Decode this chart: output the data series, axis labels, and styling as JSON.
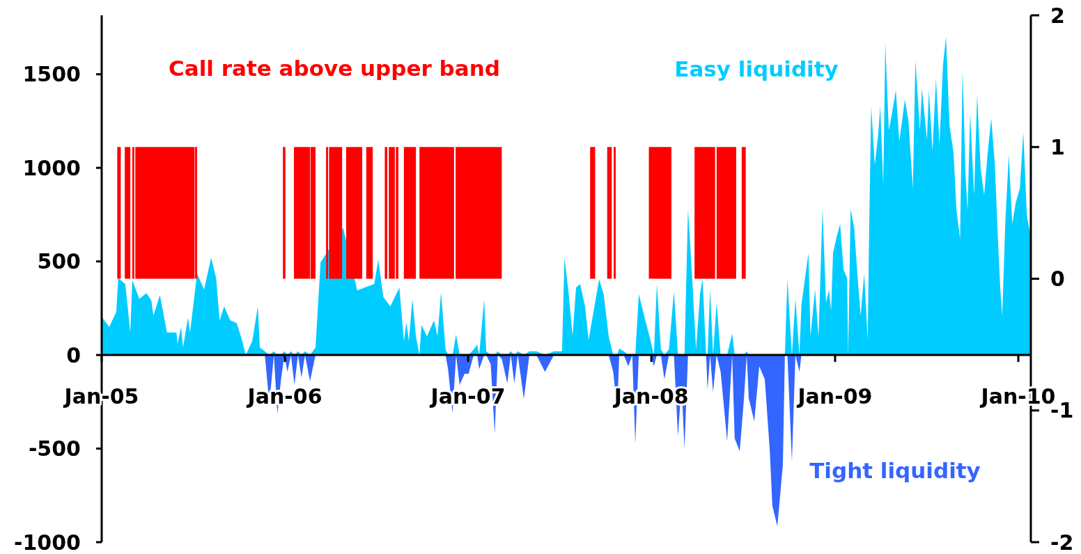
{
  "chart_data": {
    "type": "area",
    "xlim": [
      "2005-01-01",
      "2010-01-26"
    ],
    "xticks": [
      {
        "value": "2005-01-01",
        "label": "Jan-05"
      },
      {
        "value": "2006-01-01",
        "label": "Jan-06"
      },
      {
        "value": "2007-01-01",
        "label": "Jan-07"
      },
      {
        "value": "2008-01-01",
        "label": "Jan-08"
      },
      {
        "value": "2009-01-01",
        "label": "Jan-09"
      },
      {
        "value": "2010-01-01",
        "label": "Jan-10"
      }
    ],
    "ylim": [
      -1000,
      1815
    ],
    "yticks": [
      -1000,
      -500,
      0,
      500,
      1000,
      1500
    ],
    "y2lim": [
      -2,
      2
    ],
    "y2ticks": [
      -2,
      -1,
      0,
      1,
      2
    ],
    "x": [
      "2005-01-02",
      "2005-01-16",
      "2005-01-30",
      "2005-02-03",
      "2005-02-17",
      "2005-02-27",
      "2005-03-03",
      "2005-03-17",
      "2005-03-31",
      "2005-04-10",
      "2005-04-14",
      "2005-04-27",
      "2005-05-11",
      "2005-05-30",
      "2005-06-01",
      "2005-06-08",
      "2005-06-12",
      "2005-06-22",
      "2005-06-26",
      "2005-07-10",
      "2005-07-24",
      "2005-08-07",
      "2005-08-17",
      "2005-08-24",
      "2005-09-02",
      "2005-09-14",
      "2005-09-27",
      "2005-10-07",
      "2005-10-15",
      "2005-10-28",
      "2005-11-08",
      "2005-11-12",
      "2005-11-22",
      "2005-12-01",
      "2005-12-10",
      "2005-12-17",
      "2005-12-24",
      "2005-12-31",
      "2006-01-06",
      "2006-01-13",
      "2006-01-20",
      "2006-01-27",
      "2006-02-03",
      "2006-02-10",
      "2006-02-20",
      "2006-03-03",
      "2006-03-13",
      "2006-03-31",
      "2006-04-14",
      "2006-04-27",
      "2006-05-11",
      "2006-05-25",
      "2006-06-08",
      "2006-06-28",
      "2006-07-06",
      "2006-07-16",
      "2006-07-30",
      "2006-08-05",
      "2006-08-17",
      "2006-08-26",
      "2006-08-31",
      "2006-09-05",
      "2006-09-12",
      "2006-09-19",
      "2006-09-26",
      "2006-09-30",
      "2006-10-11",
      "2006-10-25",
      "2006-11-01",
      "2006-11-08",
      "2006-11-17",
      "2006-11-22",
      "2006-12-01",
      "2006-12-08",
      "2006-12-15",
      "2006-12-25",
      "2007-01-02",
      "2007-01-12",
      "2007-01-19",
      "2007-01-23",
      "2007-02-02",
      "2007-02-06",
      "2007-02-15",
      "2007-02-23",
      "2007-03-01",
      "2007-03-09",
      "2007-03-20",
      "2007-03-27",
      "2007-04-03",
      "2007-04-10",
      "2007-04-22",
      "2007-05-03",
      "2007-05-17",
      "2007-06-03",
      "2007-06-21",
      "2007-07-07",
      "2007-07-12",
      "2007-07-21",
      "2007-07-28",
      "2007-08-04",
      "2007-08-12",
      "2007-08-22",
      "2007-08-29",
      "2007-09-11",
      "2007-09-19",
      "2007-09-28",
      "2007-10-08",
      "2007-10-17",
      "2007-10-25",
      "2007-10-29",
      "2007-11-07",
      "2007-11-16",
      "2007-11-24",
      "2007-11-30",
      "2007-12-07",
      "2007-12-20",
      "2007-12-31",
      "2008-01-06",
      "2008-01-12",
      "2008-01-20",
      "2008-01-27",
      "2008-02-05",
      "2008-02-15",
      "2008-02-23",
      "2008-03-01",
      "2008-03-07",
      "2008-03-14",
      "2008-03-23",
      "2008-03-30",
      "2008-04-07",
      "2008-04-12",
      "2008-04-19",
      "2008-04-22",
      "2008-04-27",
      "2008-05-03",
      "2008-05-10",
      "2008-05-18",
      "2008-05-31",
      "2008-06-10",
      "2008-06-15",
      "2008-06-25",
      "2008-07-03",
      "2008-07-09",
      "2008-07-13",
      "2008-07-24",
      "2008-08-03",
      "2008-08-14",
      "2008-08-24",
      "2008-08-29",
      "2008-09-08",
      "2008-09-19",
      "2008-09-23",
      "2008-09-28",
      "2008-10-07",
      "2008-10-14",
      "2008-10-22",
      "2008-10-26",
      "2008-11-09",
      "2008-11-13",
      "2008-11-22",
      "2008-11-29",
      "2008-12-07",
      "2008-12-14",
      "2008-12-20",
      "2008-12-24",
      "2008-12-28",
      "2009-01-04",
      "2009-01-11",
      "2009-01-18",
      "2009-01-25",
      "2009-01-27",
      "2009-02-01",
      "2009-02-08",
      "2009-02-15",
      "2009-02-21",
      "2009-02-28",
      "2009-03-07",
      "2009-03-10",
      "2009-03-14",
      "2009-03-21",
      "2009-03-28",
      "2009-04-01",
      "2009-04-07",
      "2009-04-11",
      "2009-04-18",
      "2009-04-25",
      "2009-05-02",
      "2009-05-09",
      "2009-05-20",
      "2009-05-27",
      "2009-06-05",
      "2009-06-10",
      "2009-06-19",
      "2009-06-23",
      "2009-07-03",
      "2009-07-07",
      "2009-07-14",
      "2009-07-21",
      "2009-07-28",
      "2009-08-04",
      "2009-08-10",
      "2009-08-17",
      "2009-08-25",
      "2009-08-31",
      "2009-09-07",
      "2009-09-12",
      "2009-09-18",
      "2009-09-22",
      "2009-09-27",
      "2009-10-05",
      "2009-10-11",
      "2009-10-18",
      "2009-10-25",
      "2009-11-01",
      "2009-11-08",
      "2009-11-15",
      "2009-11-22",
      "2009-11-26",
      "2009-11-30",
      "2009-12-06",
      "2009-12-13",
      "2009-12-20",
      "2009-12-27",
      "2010-01-04",
      "2010-01-11",
      "2010-01-18",
      "2010-01-25"
    ],
    "series": [
      {
        "name": "Easy liquidity",
        "color": "#00ccff",
        "values": [
          200,
          150,
          230,
          410,
          380,
          120,
          400,
          300,
          330,
          290,
          210,
          320,
          120,
          120,
          60,
          150,
          40,
          200,
          120,
          435,
          350,
          520,
          410,
          185,
          260,
          185,
          170,
          85,
          0,
          75,
          260,
          40,
          20,
          0,
          20,
          0,
          0,
          20,
          0,
          20,
          0,
          20,
          0,
          20,
          0,
          40,
          495,
          null,
          null,
          680,
          null,
          345,
          null,
          380,
          510,
          310,
          260,
          null,
          360,
          75,
          175,
          75,
          300,
          100,
          0,
          160,
          100,
          185,
          100,
          335,
          30,
          0,
          0,
          110,
          0,
          0,
          0,
          30,
          55,
          0,
          300,
          20,
          0,
          0,
          20,
          0,
          0,
          20,
          0,
          20,
          0,
          20,
          20,
          0,
          20,
          20,
          520,
          310,
          100,
          360,
          380,
          260,
          80,
          null,
          405,
          325,
          100,
          0,
          0,
          35,
          20,
          0,
          5,
          0,
          325,
          185,
          70,
          0,
          380,
          30,
          0,
          30,
          340,
          0,
          0,
          0,
          780,
          380,
          30,
          325,
          410,
          5,
          0,
          350,
          0,
          280,
          0,
          0,
          115,
          0,
          0,
          0,
          20,
          0,
          0,
          0,
          0,
          0,
          0,
          0,
          0,
          0,
          405,
          0,
          300,
          0,
          270,
          545,
          100,
          350,
          100,
          780,
          280,
          350,
          235,
          545,
          630,
          700,
          455,
          410,
          0,
          780,
          680,
          410,
          210,
          435,
          80,
          700,
          1330,
          1015,
          1180,
          1330,
          905,
          1665,
          1200,
          1300,
          1415,
          1140,
          1365,
          1255,
          890,
          1575,
          1200,
          1425,
          1150,
          1415,
          1090,
          1475,
          1125,
          1550,
          1700,
          1225,
          1080,
          770,
          620,
          1525,
          955,
          770,
          1290,
          855,
          1390,
          995,
          855,
          1080,
          1265,
          1030,
          585,
          360,
          210,
          700,
          1070,
          700,
          815,
          890,
          1190,
          745,
          645
        ]
      },
      {
        "name": "Tight liquidity",
        "color": "#3366ff",
        "x": [
          "2005-11-22",
          "2005-12-01",
          "2005-12-10",
          "2005-12-17",
          "2005-12-24",
          "2005-12-31",
          "2006-01-06",
          "2006-01-13",
          "2006-01-20",
          "2006-01-27",
          "2006-02-03",
          "2006-02-10",
          "2006-02-20",
          "2006-03-03",
          "2006-11-17",
          "2006-11-22",
          "2006-12-01",
          "2006-12-08",
          "2006-12-15",
          "2006-12-25",
          "2007-01-02",
          "2007-01-12",
          "2007-01-19",
          "2007-01-23",
          "2007-02-02",
          "2007-02-06",
          "2007-02-15",
          "2007-02-23",
          "2007-03-01",
          "2007-03-09",
          "2007-03-20",
          "2007-03-27",
          "2007-04-03",
          "2007-04-10",
          "2007-04-22",
          "2007-05-03",
          "2007-05-17",
          "2007-06-03",
          "2007-06-21",
          "2007-10-08",
          "2007-10-17",
          "2007-10-25",
          "2007-10-29",
          "2007-11-07",
          "2007-11-16",
          "2007-11-24",
          "2007-11-30",
          "2007-12-07",
          "2007-12-31",
          "2008-01-06",
          "2008-01-12",
          "2008-01-20",
          "2008-01-27",
          "2008-02-05",
          "2008-02-15",
          "2008-02-23",
          "2008-03-01",
          "2008-03-07",
          "2008-03-14",
          "2008-04-19",
          "2008-04-22",
          "2008-04-27",
          "2008-05-03",
          "2008-05-10",
          "2008-05-18",
          "2008-05-31",
          "2008-06-10",
          "2008-06-15",
          "2008-06-25",
          "2008-07-03",
          "2008-07-09",
          "2008-07-13",
          "2008-07-24",
          "2008-08-03",
          "2008-08-14",
          "2008-08-24",
          "2008-08-29",
          "2008-09-08",
          "2008-09-19",
          "2008-09-23",
          "2008-09-28",
          "2008-10-07",
          "2008-10-14",
          "2008-10-22",
          "2008-10-26"
        ],
        "values": [
          0,
          -260,
          0,
          -315,
          -135,
          0,
          -90,
          0,
          -160,
          0,
          -120,
          0,
          -140,
          0,
          0,
          -75,
          -310,
          0,
          -160,
          -100,
          -100,
          0,
          0,
          -75,
          0,
          0,
          -50,
          -420,
          0,
          -20,
          -150,
          0,
          -150,
          0,
          -235,
          0,
          0,
          -90,
          0,
          0,
          -90,
          -295,
          0,
          0,
          -60,
          0,
          -475,
          0,
          0,
          -60,
          0,
          0,
          -130,
          0,
          0,
          -435,
          -160,
          -500,
          0,
          0,
          -185,
          0,
          -200,
          0,
          -90,
          -460,
          0,
          -445,
          -515,
          -250,
          0,
          -230,
          -355,
          -60,
          -130,
          -515,
          -805,
          -915,
          -585,
          0,
          0,
          -570,
          0,
          -90,
          0
        ]
      },
      {
        "name": "Call rate above upper band",
        "axis": "y2",
        "color": "#ff0000",
        "x": [
          "2005-02-01",
          "2005-02-01",
          "2005-02-08",
          "2005-02-08",
          "2005-02-16",
          "2005-02-16",
          "2005-02-27",
          "2005-02-27",
          "2005-03-03",
          "2005-03-03",
          "2005-03-07",
          "2005-03-07",
          "2005-03-09",
          "2005-03-09",
          "2005-07-05",
          "2005-07-05",
          "2005-07-06",
          "2005-07-06",
          "2005-07-10",
          "2005-07-10",
          "2005-12-28",
          "2005-12-28",
          "2006-01-02",
          "2006-01-02",
          "2006-01-19",
          "2006-01-19",
          "2006-02-20",
          "2006-02-20",
          "2006-02-21",
          "2006-02-21",
          "2006-03-03",
          "2006-03-03",
          "2006-03-24",
          "2006-03-24",
          "2006-03-28",
          "2006-03-28",
          "2006-03-30",
          "2006-03-30",
          "2006-04-25",
          "2006-04-25",
          "2006-05-03",
          "2006-05-03",
          "2006-06-04",
          "2006-06-04",
          "2006-06-12",
          "2006-06-12",
          "2006-06-25",
          "2006-06-25",
          "2006-07-19",
          "2006-07-19",
          "2006-07-24",
          "2006-07-24",
          "2006-07-27",
          "2006-07-27",
          "2006-08-08",
          "2006-08-08",
          "2006-08-10",
          "2006-08-10",
          "2006-08-15",
          "2006-08-15",
          "2006-08-26",
          "2006-08-26",
          "2006-09-19",
          "2006-09-19",
          "2006-09-26",
          "2006-09-26",
          "2006-12-04",
          "2006-12-04",
          "2006-12-07",
          "2006-12-07",
          "2007-03-09",
          "2007-03-09",
          "2007-09-01",
          "2007-09-01",
          "2007-09-11",
          "2007-09-11",
          "2007-10-05",
          "2007-10-05",
          "2007-10-14",
          "2007-10-14",
          "2007-10-18",
          "2007-10-18",
          "2007-10-22",
          "2007-10-22",
          "2007-12-27",
          "2007-12-27",
          "2008-02-10",
          "2008-02-10",
          "2008-03-27",
          "2008-03-27",
          "2008-05-07",
          "2008-05-07",
          "2008-05-10",
          "2008-05-10",
          "2008-06-18",
          "2008-06-18",
          "2008-06-29",
          "2008-06-29",
          "2008-07-07",
          "2008-07-07"
        ],
        "values": [
          0,
          1,
          1,
          0,
          0,
          1,
          1,
          0,
          0,
          1,
          1,
          0,
          0,
          1,
          1,
          0,
          0,
          1,
          1,
          0,
          0,
          1,
          1,
          0,
          0,
          1,
          1,
          0,
          0,
          1,
          1,
          0,
          0,
          1,
          1,
          0,
          0,
          1,
          1,
          0,
          0,
          1,
          1,
          0,
          0,
          1,
          1,
          0,
          0,
          1,
          1,
          0,
          0,
          1,
          1,
          0,
          0,
          1,
          1,
          0,
          0,
          1,
          1,
          0,
          0,
          1,
          1,
          0,
          0,
          1,
          1,
          0,
          0,
          1,
          1,
          0,
          0,
          1,
          1,
          0,
          0,
          1,
          1,
          0,
          0,
          1,
          1,
          0,
          0,
          1,
          1,
          0,
          0,
          1,
          1,
          0,
          0,
          1,
          1,
          0
        ]
      }
    ]
  }
}
